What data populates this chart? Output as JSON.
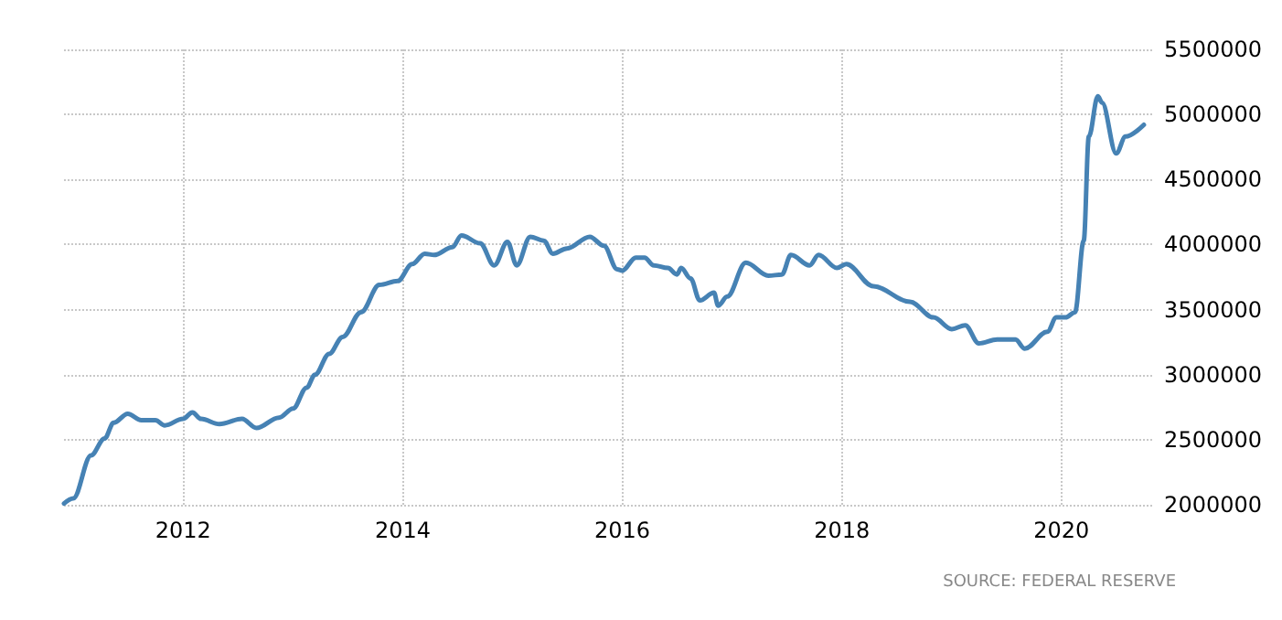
{
  "chart_data": {
    "type": "line",
    "x": [
      "2010-12-01",
      "2011-01-01",
      "2011-03-01",
      "2011-04-15",
      "2011-05-15",
      "2011-07-01",
      "2011-08-15",
      "2011-10-01",
      "2011-11-01",
      "2012-01-01",
      "2012-02-01",
      "2012-03-01",
      "2012-05-01",
      "2012-07-15",
      "2012-09-01",
      "2012-11-15",
      "2013-01-01",
      "2013-02-15",
      "2013-03-15",
      "2013-05-01",
      "2013-06-15",
      "2013-08-15",
      "2013-10-15",
      "2013-12-15",
      "2014-02-01",
      "2014-03-15",
      "2014-04-15",
      "2014-06-15",
      "2014-07-15",
      "2014-09-15",
      "2014-11-01",
      "2014-12-15",
      "2015-01-15",
      "2015-03-01",
      "2015-04-15",
      "2015-05-15",
      "2015-07-01",
      "2015-09-15",
      "2015-11-01",
      "2015-12-15",
      "2016-01-01",
      "2016-02-15",
      "2016-03-15",
      "2016-04-15",
      "2016-06-01",
      "2016-07-01",
      "2016-07-15",
      "2016-08-15",
      "2016-09-15",
      "2016-11-01",
      "2016-11-15",
      "2016-12-15",
      "2017-02-15",
      "2017-05-01",
      "2017-06-15",
      "2017-07-15",
      "2017-09-15",
      "2017-10-15",
      "2017-12-15",
      "2018-01-15",
      "2018-04-15",
      "2018-08-15",
      "2018-11-01",
      "2019-01-01",
      "2019-02-15",
      "2019-04-01",
      "2019-06-01",
      "2019-08-01",
      "2019-09-01",
      "2019-11-15",
      "2019-12-15",
      "2020-01-15",
      "2020-02-15",
      "2020-03-15",
      "2020-04-01",
      "2020-05-01",
      "2020-05-15",
      "2020-07-01",
      "2020-08-01",
      "2020-10-01"
    ],
    "series": [
      {
        "color": "#4682b4",
        "values": [
          2010000,
          2050000,
          2380000,
          2510000,
          2630000,
          2700000,
          2650000,
          2650000,
          2610000,
          2660000,
          2710000,
          2660000,
          2620000,
          2660000,
          2590000,
          2670000,
          2740000,
          2900000,
          3000000,
          3160000,
          3290000,
          3480000,
          3690000,
          3720000,
          3850000,
          3930000,
          3920000,
          3980000,
          4070000,
          4010000,
          3840000,
          4020000,
          3840000,
          4060000,
          4030000,
          3930000,
          3970000,
          4060000,
          3990000,
          3810000,
          3800000,
          3900000,
          3900000,
          3840000,
          3820000,
          3770000,
          3820000,
          3740000,
          3570000,
          3630000,
          3530000,
          3600000,
          3860000,
          3760000,
          3770000,
          3920000,
          3840000,
          3920000,
          3820000,
          3850000,
          3680000,
          3560000,
          3440000,
          3350000,
          3380000,
          3240000,
          3270000,
          3270000,
          3200000,
          3330000,
          3440000,
          3440000,
          3480000,
          4030000,
          4830000,
          5140000,
          5090000,
          4700000,
          4830000,
          4920000
        ]
      }
    ],
    "xlim": [
      "2010-12-01",
      "2020-11-01"
    ],
    "xticks": [
      {
        "value": "2012-01-01",
        "label": "2012"
      },
      {
        "value": "2014-01-01",
        "label": "2014"
      },
      {
        "value": "2016-01-01",
        "label": "2016"
      },
      {
        "value": "2018-01-01",
        "label": "2018"
      },
      {
        "value": "2020-01-01",
        "label": "2020"
      }
    ],
    "ylim": [
      2000000,
      5500000
    ],
    "yticks": [
      2000000,
      2500000,
      3000000,
      3500000,
      4000000,
      4500000,
      5000000,
      5500000
    ],
    "grid": true,
    "marker": "none",
    "line_style": "solid",
    "annotations": [
      "SOURCE: FEDERAL RESERVE"
    ]
  }
}
